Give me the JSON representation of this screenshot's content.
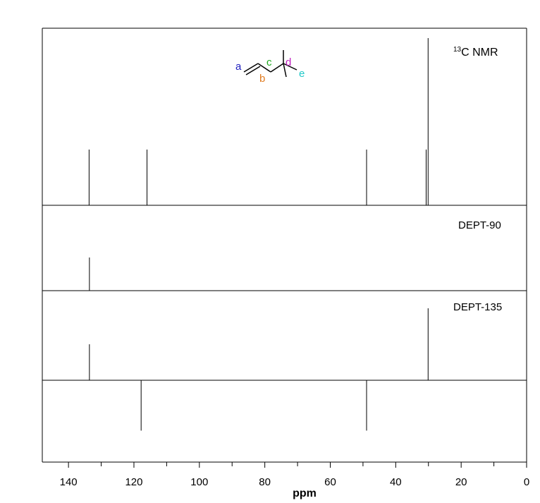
{
  "chart_data": {
    "type": "stick",
    "xlabel": "ppm",
    "xlim": [
      148,
      0
    ],
    "x_ticks_major": [
      140,
      120,
      100,
      80,
      60,
      40,
      20,
      0
    ],
    "x_ticks_minor": [
      130,
      110,
      90,
      70,
      50,
      30,
      10
    ],
    "panels": [
      {
        "label_prefix": "13",
        "label": "C NMR",
        "peaks": [
          {
            "ppm": 133.7,
            "intensity": 1.0
          },
          {
            "ppm": 116.0,
            "intensity": 1.0
          },
          {
            "ppm": 48.9,
            "intensity": 1.0
          },
          {
            "ppm": 30.7,
            "intensity": 1.0
          },
          {
            "ppm": 30.1,
            "intensity": 3.0
          }
        ]
      },
      {
        "label": "DEPT-90",
        "peaks": [
          {
            "ppm": 133.6,
            "intensity": 1.0
          }
        ]
      },
      {
        "label": "DEPT-135",
        "peaks": [
          {
            "ppm": 133.6,
            "intensity": 1.0
          },
          {
            "ppm": 30.1,
            "intensity": 2.0
          },
          {
            "ppm": 117.8,
            "intensity": -1.4
          },
          {
            "ppm": 48.9,
            "intensity": -1.4
          }
        ]
      }
    ],
    "structure_labels": [
      {
        "text": "a",
        "color": "#1f1fbf"
      },
      {
        "text": "b",
        "color": "#e07b1f"
      },
      {
        "text": "c",
        "color": "#1fa81f"
      },
      {
        "text": "d",
        "color": "#c020c0"
      },
      {
        "text": "e",
        "color": "#20c8c8"
      }
    ]
  }
}
